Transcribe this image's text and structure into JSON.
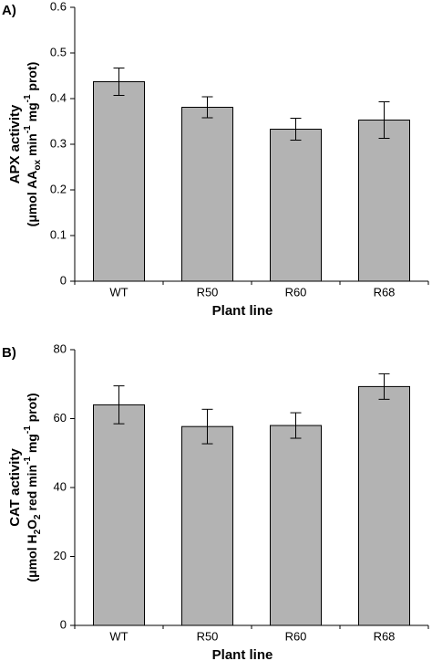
{
  "chart_data": [
    {
      "type": "bar",
      "panel_label": "A)",
      "y_label": {
        "line1": "APX activity",
        "line2": [
          "(μmol AA",
          "ox",
          " min",
          "-1",
          " mg",
          "-1",
          " prot)"
        ]
      },
      "x_label": "Plant line",
      "categories": [
        "WT",
        "R50",
        "R60",
        "R68"
      ],
      "values": [
        0.437,
        0.381,
        0.333,
        0.353
      ],
      "errors": [
        0.03,
        0.023,
        0.024,
        0.04
      ],
      "color": "#b3b3b3",
      "ylim": [
        0,
        0.6
      ],
      "yticks": [
        0,
        0.1,
        0.2,
        0.3,
        0.4,
        0.5,
        0.6
      ]
    },
    {
      "type": "bar",
      "panel_label": "B)",
      "y_label": {
        "line1": "CAT activity",
        "line2": [
          "(μmol H",
          "2",
          "O",
          "2",
          " red min",
          "-1",
          " mg",
          "-1",
          " prot)"
        ]
      },
      "x_label": "Plant line",
      "categories": [
        "WT",
        "R50",
        "R60",
        "R68"
      ],
      "values": [
        64,
        57.7,
        58,
        69.3
      ],
      "errors": [
        5.5,
        5,
        3.7,
        3.7
      ],
      "color": "#b3b3b3",
      "ylim": [
        0,
        80
      ],
      "yticks": [
        0,
        20,
        40,
        60,
        80
      ]
    }
  ]
}
